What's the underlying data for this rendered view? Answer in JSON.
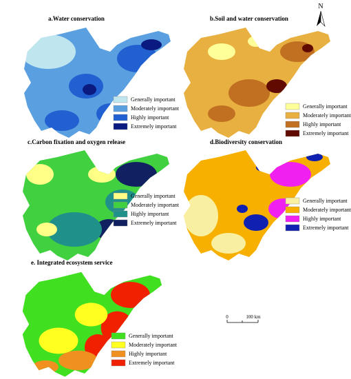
{
  "north_label": "N",
  "scale_bar": {
    "start": "0",
    "end": "100 km"
  },
  "panels": [
    {
      "title": "a.Water conservation",
      "legend": [
        {
          "label": "Generally important",
          "color": "#bfe6ef"
        },
        {
          "label": "Moderately important",
          "color": "#5aa0e0"
        },
        {
          "label": "Highly important",
          "color": "#2060d0"
        },
        {
          "label": "Extremely important",
          "color": "#0a1a80"
        }
      ]
    },
    {
      "title": "b.Soil and water conservation",
      "legend": [
        {
          "label": "Generally important",
          "color": "#ffff99"
        },
        {
          "label": "Moderately important",
          "color": "#e8b040"
        },
        {
          "label": "Highly important",
          "color": "#c07020"
        },
        {
          "label": "Extremely important",
          "color": "#600a00"
        }
      ]
    },
    {
      "title": "c.Carbon fixation and oxygen release",
      "legend": [
        {
          "label": "Generally important",
          "color": "#ffff88"
        },
        {
          "label": "Moderately important",
          "color": "#40d040"
        },
        {
          "label": "Highly important",
          "color": "#20908a"
        },
        {
          "label": "Extremely important",
          "color": "#102060"
        }
      ]
    },
    {
      "title": "d.Biodiversity conservation",
      "legend": [
        {
          "label": "Generally important",
          "color": "#f8f0a0"
        },
        {
          "label": "Moderately important",
          "color": "#f8b000"
        },
        {
          "label": "Highly important",
          "color": "#f020f0"
        },
        {
          "label": "Extremely important",
          "color": "#1020b0"
        }
      ]
    },
    {
      "title": "e. Integrated ecosystem service",
      "legend": [
        {
          "label": "Generally important",
          "color": "#40e020"
        },
        {
          "label": "Moderately important",
          "color": "#ffff20"
        },
        {
          "label": "Highly important",
          "color": "#f09020"
        },
        {
          "label": "Extremely important",
          "color": "#f02000"
        }
      ]
    }
  ]
}
